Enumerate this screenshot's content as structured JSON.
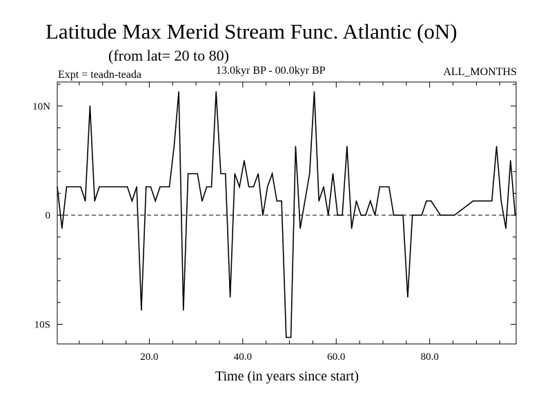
{
  "chart_data": {
    "type": "line",
    "title": "Latitude Max Merid Stream Func. Atlantic (oN)",
    "subtitle": "(from lat= 20 to 80)",
    "experiment": "Expt = teadn-teada",
    "period": "13.0kyr BP - 00.0kyr BP",
    "months": "ALL_MONTHS",
    "xlabel": "Time (in years since start)",
    "ylabel": "",
    "xlim": [
      0.3,
      98.5
    ],
    "ylim": [
      -11.8,
      12.2
    ],
    "x_ticks": [
      20,
      40,
      60,
      80
    ],
    "x_tick_labels": [
      "20.0",
      "40.0",
      "60.0",
      "80.0"
    ],
    "x_minor_step": 5,
    "y_ticks": [
      10,
      0,
      -10
    ],
    "y_tick_labels": [
      "10N",
      "0",
      "10S"
    ],
    "y_minor_step": 2,
    "zero_line": "dashed",
    "series": [
      {
        "name": "latitude",
        "x": [
          0.3,
          1.3,
          2.3,
          5.3,
          6.3,
          7.3,
          8.3,
          9.3,
          15.3,
          16.3,
          17.3,
          18.3,
          19.3,
          20.3,
          21.3,
          22.3,
          24.3,
          25.3,
          26.3,
          27.3,
          28.3,
          30.3,
          31.3,
          32.3,
          33.3,
          34.3,
          35.3,
          36.3,
          37.3,
          38.3,
          39.3,
          40.3,
          41.3,
          42.3,
          43.3,
          44.3,
          45.3,
          46.3,
          47.3,
          48.3,
          49.3,
          50.3,
          51.3,
          52.3,
          54.3,
          55.3,
          56.3,
          57.3,
          58.3,
          59.3,
          60.3,
          61.3,
          62.3,
          63.3,
          64.3,
          65.3,
          66.3,
          67.3,
          68.3,
          69.3,
          71.3,
          72.3,
          74.3,
          75.3,
          76.3,
          77.3,
          78.3,
          79.3,
          80.3,
          82.3,
          83.3,
          84.3,
          85.3,
          89.3,
          93.3,
          94.3,
          95.3,
          96.3,
          97.3,
          98.3
        ],
        "y": [
          2.6,
          -1.2,
          2.6,
          2.6,
          1.3,
          10.0,
          1.3,
          2.6,
          2.6,
          1.3,
          2.6,
          -8.7,
          2.6,
          2.6,
          1.3,
          2.6,
          2.6,
          6.3,
          11.3,
          -8.7,
          3.8,
          3.8,
          1.3,
          2.6,
          2.6,
          11.3,
          3.8,
          3.8,
          -7.5,
          3.8,
          2.6,
          5.0,
          2.6,
          2.6,
          3.8,
          0.0,
          2.6,
          3.8,
          1.3,
          1.3,
          -11.2,
          -11.2,
          6.3,
          -1.2,
          3.8,
          11.3,
          1.3,
          2.6,
          0.0,
          3.8,
          0.0,
          0.0,
          6.3,
          -1.2,
          1.3,
          0.0,
          0.0,
          1.3,
          0.0,
          2.6,
          2.6,
          0.0,
          0.0,
          -7.5,
          0.0,
          0.0,
          0.0,
          1.3,
          1.3,
          0.0,
          0.0,
          0.0,
          0.0,
          1.3,
          1.3,
          6.3,
          1.3,
          -1.2,
          5.0,
          0.0
        ]
      }
    ]
  }
}
